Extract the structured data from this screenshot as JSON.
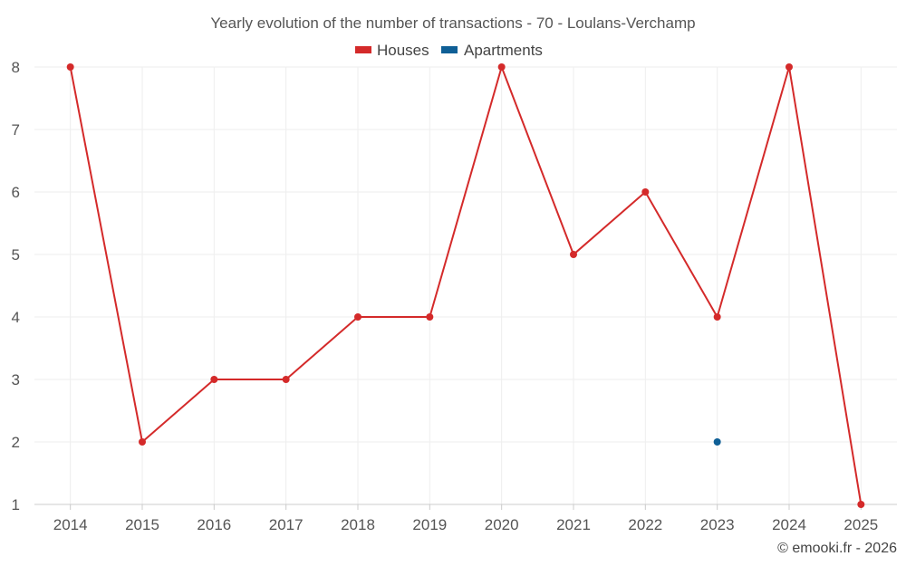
{
  "chart_data": {
    "type": "line",
    "title": "Yearly evolution of the number of transactions - 70 - Loulans-Verchamp",
    "categories": [
      "2014",
      "2015",
      "2016",
      "2017",
      "2018",
      "2019",
      "2020",
      "2021",
      "2022",
      "2023",
      "2024",
      "2025"
    ],
    "series": [
      {
        "name": "Houses",
        "color": "#d42a2a",
        "values": [
          8,
          2,
          3,
          3,
          4,
          4,
          8,
          5,
          6,
          4,
          8,
          1
        ]
      },
      {
        "name": "Apartments",
        "color": "#0f5f96",
        "values": [
          null,
          null,
          null,
          null,
          null,
          null,
          null,
          null,
          null,
          2,
          null,
          null
        ]
      }
    ],
    "ylim": [
      1,
      8
    ],
    "yticks": [
      "1",
      "2",
      "3",
      "4",
      "5",
      "6",
      "7",
      "8"
    ],
    "xlabel": "",
    "ylabel": "",
    "grid": true,
    "legend": "top-center"
  },
  "credit": "© emooki.fr - 2026"
}
